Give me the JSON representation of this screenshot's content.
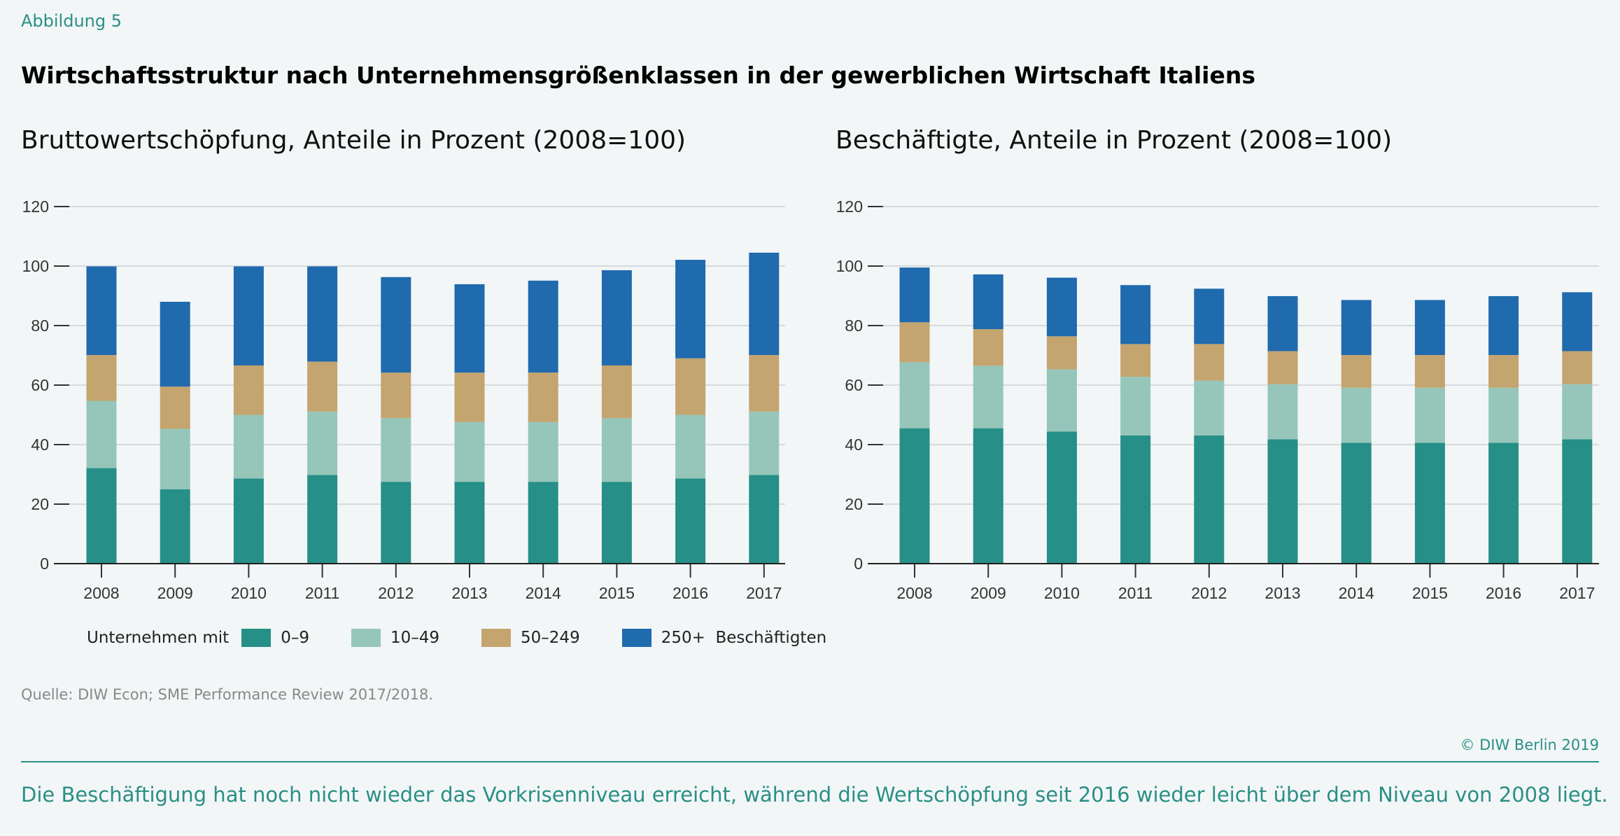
{
  "figure_label": "Abbildung 5",
  "title": "Wirtschaftsstruktur nach Unternehmensgrößenklassen in der gewerblichen Wirtschaft Italiens",
  "legend": {
    "prefix": "Unternehmen mit",
    "items": [
      "0–9",
      "10–49",
      "50–249",
      "250+  Beschäftigten"
    ]
  },
  "colors": {
    "0-9": "#268f87",
    "10-49": "#96c6ba",
    "50-249": "#c4a46f",
    "250+": "#206aae"
  },
  "source": "Quelle: DIW Econ; SME Performance Review 2017/2018.",
  "copyright": "© DIW Berlin 2019",
  "caption": "Die Beschäftigung hat noch nicht wieder das Vorkrisenniveau erreicht, während die Wertschöpfung seit 2016 wieder leicht über dem Niveau von 2008 liegt.",
  "chart_data": [
    {
      "type": "bar",
      "stacked": true,
      "title": "Bruttowertschöpfung, Anteile in Prozent (2008=100)",
      "categories": [
        "2008",
        "2009",
        "2010",
        "2011",
        "2012",
        "2013",
        "2014",
        "2015",
        "2016",
        "2017"
      ],
      "ylim": [
        0,
        120
      ],
      "yticks": [
        0,
        20,
        40,
        60,
        80,
        100,
        120
      ],
      "grid": true,
      "legend": "bottom",
      "series": [
        {
          "name": "0–9",
          "color": "#268f87",
          "values": [
            32.1,
            25.0,
            28.6,
            29.8,
            27.5,
            27.5,
            27.5,
            27.5,
            28.6,
            29.8
          ]
        },
        {
          "name": "10–49",
          "color": "#96c6ba",
          "values": [
            22.6,
            20.3,
            21.4,
            21.3,
            21.4,
            20.1,
            20.1,
            21.4,
            21.4,
            21.3
          ]
        },
        {
          "name": "50–249",
          "color": "#c4a46f",
          "values": [
            15.4,
            14.2,
            16.6,
            16.8,
            15.3,
            16.6,
            16.6,
            17.7,
            19.0,
            19.0
          ]
        },
        {
          "name": "250+",
          "color": "#206aae",
          "values": [
            29.8,
            28.5,
            33.3,
            32.0,
            32.1,
            29.7,
            30.9,
            32.0,
            33.1,
            34.4
          ]
        }
      ]
    },
    {
      "type": "bar",
      "stacked": true,
      "title": "Beschäftigte, Anteile in Prozent (2008=100)",
      "categories": [
        "2008",
        "2009",
        "2010",
        "2011",
        "2012",
        "2013",
        "2014",
        "2015",
        "2016",
        "2017"
      ],
      "ylim": [
        0,
        120
      ],
      "yticks": [
        0,
        20,
        40,
        60,
        80,
        100,
        120
      ],
      "grid": true,
      "legend": "bottom",
      "series": [
        {
          "name": "0–9",
          "color": "#268f87",
          "values": [
            45.5,
            45.5,
            44.4,
            43.1,
            43.1,
            41.8,
            40.6,
            40.6,
            40.6,
            41.8
          ]
        },
        {
          "name": "10–49",
          "color": "#96c6ba",
          "values": [
            22.2,
            21.0,
            20.9,
            19.7,
            18.4,
            18.5,
            18.5,
            18.5,
            18.5,
            18.5
          ]
        },
        {
          "name": "50–249",
          "color": "#c4a46f",
          "values": [
            13.4,
            12.3,
            11.1,
            11.0,
            12.3,
            11.1,
            11.0,
            11.0,
            11.0,
            11.1
          ]
        },
        {
          "name": "250+",
          "color": "#206aae",
          "values": [
            18.4,
            18.4,
            19.7,
            19.8,
            18.6,
            18.5,
            18.5,
            18.5,
            19.8,
            19.8
          ]
        }
      ]
    }
  ]
}
